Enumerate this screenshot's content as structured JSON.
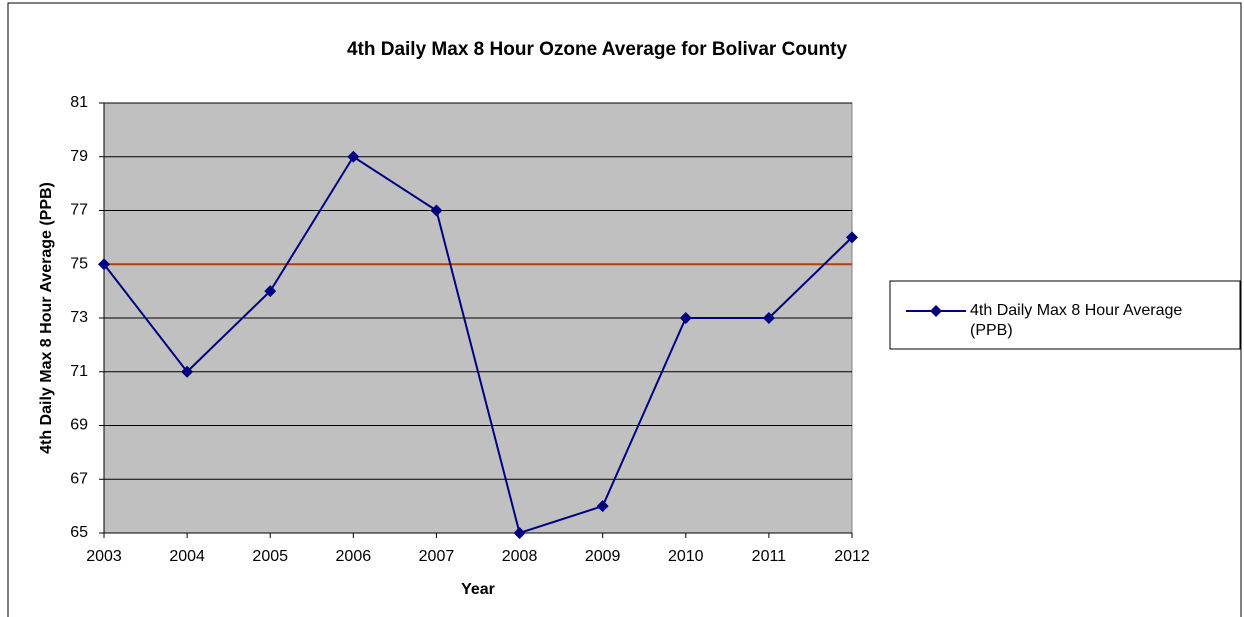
{
  "chart_data": {
    "type": "line",
    "title": "4th Daily Max 8 Hour Ozone Average for Bolivar County",
    "x_label": "Year",
    "y_label": "4th Daily Max 8 Hour Average (PPB)",
    "x": [
      2003,
      2004,
      2005,
      2006,
      2007,
      2008,
      2009,
      2010,
      2011,
      2012
    ],
    "series": [
      {
        "name": "4th Daily Max 8 Hour Average (PPB)",
        "color": "#000080",
        "values": [
          75,
          71,
          74,
          79,
          77,
          65,
          66,
          73,
          73,
          76
        ]
      }
    ],
    "reference_line": {
      "value": 75,
      "color": "#b0400e"
    },
    "xlim": [
      2003,
      2012
    ],
    "xticks": [
      2003,
      2004,
      2005,
      2006,
      2007,
      2008,
      2009,
      2010,
      2011,
      2012
    ],
    "ylim": [
      65,
      81
    ],
    "yticks": [
      65,
      67,
      69,
      71,
      73,
      75,
      77,
      79,
      81
    ],
    "grid": true,
    "plot_background": "#c0c0c0",
    "legend": "right"
  }
}
